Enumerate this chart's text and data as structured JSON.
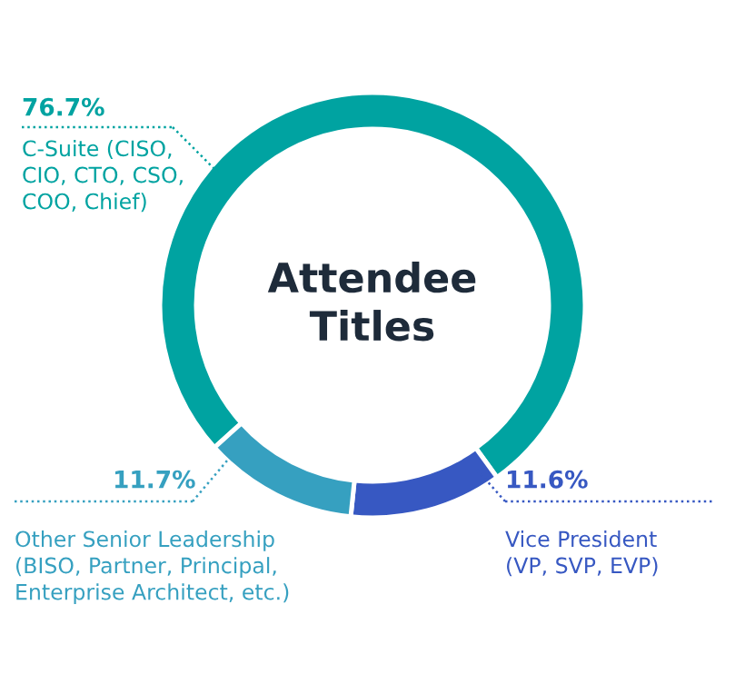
{
  "chart_data": {
    "type": "donut",
    "title": "Attendee Titles",
    "categories": [
      "C-Suite (CISO,\nCIO, CTO, CSO,\nCOO, Chief)",
      "Vice President\n(VP, SVP, EVP)",
      "Other Senior Leadership\n(BISO, Partner, Principal,\nEnterprise Architect, etc.)"
    ],
    "values": [
      76.7,
      11.6,
      11.7
    ],
    "colors": [
      "#00a3a1",
      "#3758c2",
      "#36a0c0"
    ],
    "value_labels": [
      "76.7%",
      "11.6%",
      "11.7%"
    ]
  }
}
